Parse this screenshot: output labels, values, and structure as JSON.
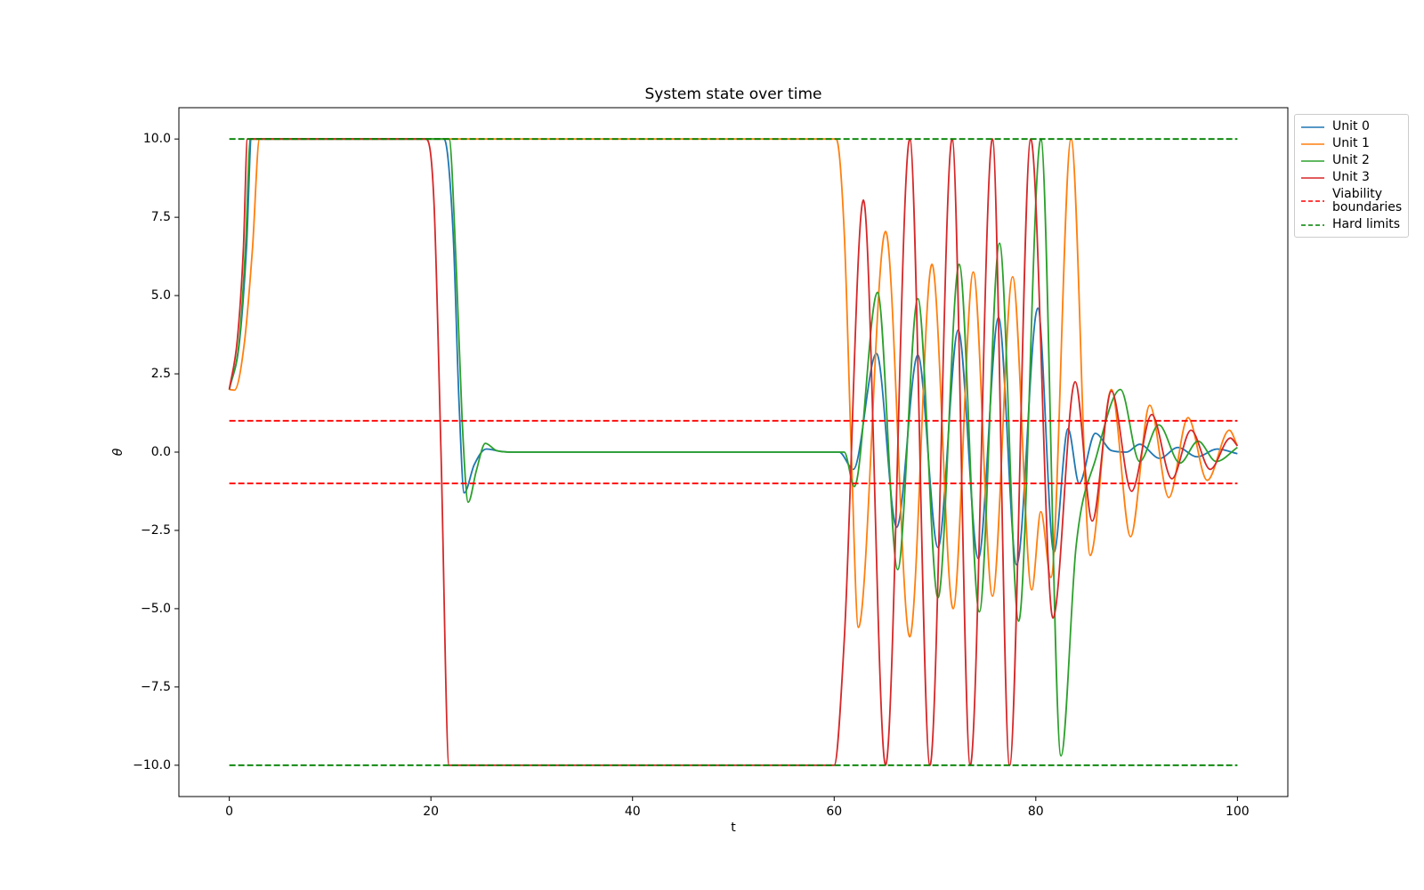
{
  "chart_data": {
    "type": "line",
    "title": "System state over time",
    "xlabel": "t",
    "ylabel": "θ",
    "xlim": [
      -5,
      105
    ],
    "ylim": [
      -11,
      11
    ],
    "xticks": [
      0,
      20,
      40,
      60,
      80,
      100
    ],
    "yticks": [
      {
        "value": -10,
        "label": "−10.0"
      },
      {
        "value": -7.5,
        "label": "−7.5"
      },
      {
        "value": -5,
        "label": "−5.0"
      },
      {
        "value": -2.5,
        "label": "−2.5"
      },
      {
        "value": 0,
        "label": "0.0"
      },
      {
        "value": 2.5,
        "label": "2.5"
      },
      {
        "value": 5,
        "label": "5.0"
      },
      {
        "value": 7.5,
        "label": "7.5"
      },
      {
        "value": 10,
        "label": "10.0"
      }
    ],
    "legend": "outside-upper-right",
    "series": [
      {
        "name": "Unit 0",
        "color": "#1f77b4",
        "x": [
          0,
          1,
          1.7,
          2.2,
          21.3,
          22.2,
          22.8,
          23.3,
          24.3,
          25.5,
          27,
          28,
          60.5,
          61.9,
          64.2,
          66.2,
          68.3,
          70.3,
          72.3,
          74.3,
          76.3,
          78.1,
          80.2,
          81.8,
          83.2,
          84.3,
          85.9,
          87.5,
          89,
          90.3,
          92.3,
          94.1,
          96,
          98,
          100
        ],
        "values": [
          2,
          3.5,
          6.5,
          10,
          10,
          7,
          1.5,
          -1.3,
          -0.4,
          0.1,
          0.02,
          0,
          0,
          -0.55,
          3.15,
          -2.4,
          3.1,
          -3.05,
          3.9,
          -3.4,
          4.3,
          -3.6,
          4.6,
          -3.2,
          0.75,
          -1.0,
          0.6,
          0.05,
          0.0,
          0.25,
          -0.2,
          0.15,
          -0.15,
          0.1,
          -0.05
        ]
      },
      {
        "name": "Unit 1",
        "color": "#ff7f0e",
        "x": [
          0,
          0.5,
          1.5,
          2.3,
          3,
          60.2,
          61,
          61.7,
          62.4,
          65.1,
          67.5,
          69.7,
          71.8,
          73.8,
          75.7,
          77.7,
          79.6,
          80.5,
          81.5,
          83.5,
          85.4,
          87.5,
          89.4,
          91.3,
          93.2,
          95.1,
          97,
          99.2,
          100
        ],
        "values": [
          2,
          1.98,
          3.5,
          6.5,
          10,
          10,
          7,
          0,
          -5.6,
          7.05,
          -5.9,
          6.0,
          -5.0,
          5.75,
          -4.6,
          5.6,
          -4.4,
          -1.9,
          -4.0,
          10,
          -3.3,
          2.0,
          -2.7,
          1.5,
          -1.45,
          1.1,
          -0.9,
          0.7,
          0.2
        ]
      },
      {
        "name": "Unit 2",
        "color": "#2ca02c",
        "x": [
          0,
          1,
          1.6,
          2.1,
          21.8,
          22.5,
          23.1,
          23.7,
          24.5,
          25.4,
          26.5,
          28,
          61,
          62,
          64.3,
          66.3,
          68.3,
          70.3,
          72.4,
          74.4,
          76.4,
          78.3,
          80.5,
          82.5,
          84,
          86,
          88.4,
          90.3,
          92.2,
          94.3,
          96.1,
          97.9,
          100
        ],
        "values": [
          2,
          3.6,
          6.5,
          10,
          10,
          6,
          1,
          -1.6,
          -0.6,
          0.28,
          0.05,
          0,
          0,
          -1.1,
          5.1,
          -3.75,
          4.9,
          -4.65,
          6.0,
          -5.1,
          6.67,
          -5.4,
          10,
          -9.7,
          -3,
          -0.15,
          2.0,
          -0.3,
          0.87,
          -0.35,
          0.35,
          -0.3,
          0.15
        ]
      },
      {
        "name": "Unit 3",
        "color": "#d62728",
        "x": [
          0,
          0.8,
          1.4,
          1.8,
          19.5,
          20.3,
          21,
          21.8,
          60,
          61,
          62.9,
          65.1,
          67.5,
          69.5,
          71.7,
          73.5,
          75.7,
          77.4,
          79.5,
          81.7,
          83.9,
          85.6,
          87.5,
          89.5,
          91.5,
          93.5,
          95.4,
          97.3,
          99.3,
          100
        ],
        "values": [
          2,
          3.6,
          6.5,
          10,
          10,
          8,
          0,
          -10,
          -10,
          -6,
          8.05,
          -10,
          10,
          -10,
          10,
          -10,
          10,
          -10,
          10,
          -5.3,
          2.25,
          -2.2,
          1.95,
          -1.25,
          1.2,
          -0.85,
          0.7,
          -0.55,
          0.45,
          0.2
        ]
      }
    ],
    "reference_lines": [
      {
        "name": "Viability\nboundaries",
        "color": "#ff0000",
        "style": "dashed",
        "values": [
          1,
          -1
        ],
        "xmin": 0,
        "xmax": 100
      },
      {
        "name": "Hard limits",
        "color": "#008000",
        "style": "dashed",
        "values": [
          10,
          -10
        ],
        "xmin": 0,
        "xmax": 100
      }
    ]
  }
}
